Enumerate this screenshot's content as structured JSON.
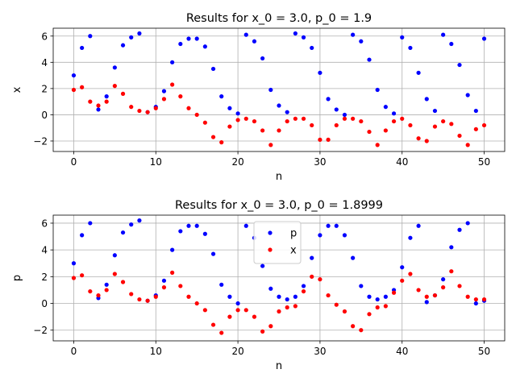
{
  "chart_data": [
    {
      "type": "scatter",
      "title": "Results for x_0 = 3.0, p_0 = 1.9",
      "xlabel": "n",
      "ylabel": "x",
      "xlim": [
        -2.5,
        52.5
      ],
      "ylim": [
        -2.8,
        6.6
      ],
      "xticks": [
        0,
        10,
        20,
        30,
        40,
        50
      ],
      "yticks": [
        -2,
        0,
        2,
        4,
        6
      ],
      "grid": true,
      "legend": null,
      "series": [
        {
          "color": "#0000ff",
          "x": [
            0,
            1,
            2,
            3,
            4,
            5,
            6,
            7,
            8,
            9,
            10,
            11,
            12,
            13,
            14,
            15,
            16,
            17,
            18,
            19,
            20,
            21,
            22,
            23,
            24,
            25,
            26,
            27,
            28,
            29,
            30,
            31,
            32,
            33,
            34,
            35,
            36,
            37,
            38,
            39,
            40,
            41,
            42,
            43,
            44,
            45,
            46,
            47,
            48,
            49,
            50
          ],
          "y": [
            3.0,
            5.1,
            6.0,
            0.4,
            1.4,
            3.6,
            5.3,
            5.9,
            6.2,
            0.2,
            0.6,
            1.8,
            4.0,
            5.4,
            5.8,
            5.8,
            5.2,
            3.5,
            1.4,
            0.5,
            0.1,
            6.1,
            5.6,
            4.3,
            1.9,
            0.7,
            0.2,
            6.2,
            5.9,
            5.1,
            3.2,
            1.2,
            0.4,
            0.0,
            6.1,
            5.6,
            4.2,
            1.9,
            0.6,
            0.1,
            5.9,
            5.1,
            3.2,
            1.2,
            0.3,
            6.1,
            5.4,
            3.8,
            1.5,
            0.3,
            5.8
          ]
        },
        {
          "color": "#ff0000",
          "x": [
            0,
            1,
            2,
            3,
            4,
            5,
            6,
            7,
            8,
            9,
            10,
            11,
            12,
            13,
            14,
            15,
            16,
            17,
            18,
            19,
            20,
            21,
            22,
            23,
            24,
            25,
            26,
            27,
            28,
            29,
            30,
            31,
            32,
            33,
            34,
            35,
            36,
            37,
            38,
            39,
            40,
            41,
            42,
            43,
            44,
            45,
            46,
            47,
            48,
            49,
            50
          ],
          "y": [
            1.9,
            2.1,
            1.0,
            0.7,
            1.0,
            2.2,
            1.6,
            0.6,
            0.3,
            0.2,
            0.5,
            1.2,
            2.3,
            1.4,
            0.5,
            0.0,
            -0.6,
            -1.7,
            -2.1,
            -0.9,
            -0.4,
            -0.3,
            -0.5,
            -1.2,
            -2.3,
            -1.2,
            -0.5,
            -0.3,
            -0.3,
            -0.8,
            -1.9,
            -1.9,
            -0.8,
            -0.3,
            -0.3,
            -0.5,
            -1.3,
            -2.3,
            -1.2,
            -0.5,
            -0.3,
            -0.8,
            -1.8,
            -2.0,
            -0.9,
            -0.5,
            -0.7,
            -1.6,
            -2.3,
            -1.1,
            -0.8
          ]
        }
      ]
    },
    {
      "type": "scatter",
      "title": "Results for x_0 = 3.0, p_0 = 1.8999",
      "xlabel": "n",
      "ylabel": "p",
      "xlim": [
        -2.5,
        52.5
      ],
      "ylim": [
        -2.8,
        6.6
      ],
      "xticks": [
        0,
        10,
        20,
        30,
        40,
        50
      ],
      "yticks": [
        -2,
        0,
        2,
        4,
        6
      ],
      "grid": true,
      "legend": "top-center",
      "series": [
        {
          "name": "p",
          "color": "#0000ff",
          "x": [
            0,
            1,
            2,
            3,
            4,
            5,
            6,
            7,
            8,
            9,
            10,
            11,
            12,
            13,
            14,
            15,
            16,
            17,
            18,
            19,
            20,
            21,
            22,
            23,
            24,
            25,
            26,
            27,
            28,
            29,
            30,
            31,
            32,
            33,
            34,
            35,
            36,
            37,
            38,
            39,
            40,
            41,
            42,
            43,
            44,
            45,
            46,
            47,
            48,
            49,
            50
          ],
          "y": [
            3.0,
            5.1,
            6.0,
            0.4,
            1.4,
            3.6,
            5.3,
            5.9,
            6.2,
            0.2,
            0.6,
            1.7,
            4.0,
            5.4,
            5.8,
            5.8,
            5.2,
            3.7,
            1.4,
            0.5,
            0.0,
            5.8,
            4.9,
            2.8,
            1.1,
            0.5,
            0.3,
            0.5,
            1.3,
            3.4,
            5.1,
            5.8,
            5.8,
            5.1,
            3.4,
            1.3,
            0.5,
            0.3,
            0.5,
            1.0,
            2.7,
            4.9,
            5.8,
            0.1,
            0.6,
            1.8,
            4.2,
            5.5,
            6.0,
            0.0,
            0.2
          ]
        },
        {
          "name": "x",
          "color": "#ff0000",
          "x": [
            0,
            1,
            2,
            3,
            4,
            5,
            6,
            7,
            8,
            9,
            10,
            11,
            12,
            13,
            14,
            15,
            16,
            17,
            18,
            19,
            20,
            21,
            22,
            23,
            24,
            25,
            26,
            27,
            28,
            29,
            30,
            31,
            32,
            33,
            34,
            35,
            36,
            37,
            38,
            39,
            40,
            41,
            42,
            43,
            44,
            45,
            46,
            47,
            48,
            49,
            50
          ],
          "y": [
            1.9,
            2.1,
            0.9,
            0.6,
            1.0,
            2.2,
            1.6,
            0.7,
            0.3,
            0.2,
            0.5,
            1.2,
            2.3,
            1.3,
            0.5,
            0.0,
            -0.5,
            -1.6,
            -2.2,
            -1.0,
            -0.5,
            -0.5,
            -1.0,
            -2.1,
            -1.7,
            -0.6,
            -0.3,
            -0.2,
            0.9,
            2.0,
            1.8,
            0.6,
            -0.1,
            -0.6,
            -1.7,
            -2.0,
            -0.8,
            -0.3,
            -0.2,
            0.8,
            1.7,
            2.2,
            1.0,
            0.5,
            0.6,
            1.2,
            2.4,
            1.3,
            0.5,
            0.3,
            0.3
          ]
        }
      ]
    }
  ]
}
